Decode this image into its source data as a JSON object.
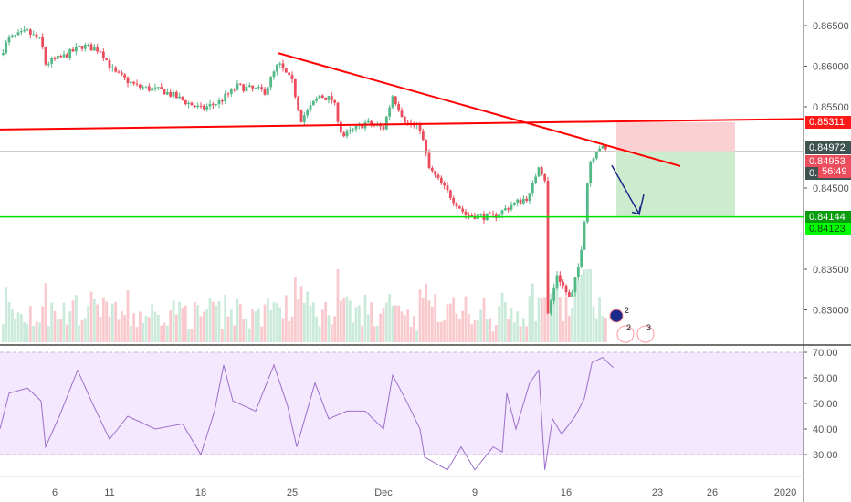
{
  "colors": {
    "up": "#53b987",
    "down": "#eb4d5c",
    "trend": "#ff0000",
    "support": "#00e000",
    "rsi": "#9c6fc9",
    "rsi_band": "#f3e8fd",
    "stop_zone": "#fbd0d3",
    "target_zone": "#cdeccd",
    "arrow": "#1a2a8a"
  },
  "chart_data": [
    {
      "type": "candlestick",
      "ylim": [
        0.8272,
        0.8685
      ],
      "y_ticks": [
        "0.86500",
        "0.86000",
        "0.85500",
        "0.84500",
        "0.83500",
        "0.83000"
      ],
      "y_tick_values": [
        0.865,
        0.86,
        0.855,
        0.845,
        0.835,
        0.83
      ],
      "x_ticks": [
        "6",
        "11",
        "18",
        "25",
        "Dec",
        "9",
        "16",
        "23",
        "26",
        "2020"
      ],
      "x_tick_dates": [
        "2019-11-06 00",
        "2019-11-11 00",
        "2019-11-18 00",
        "2019-11-25 00",
        "2019-12-02 00",
        "2019-12-09 00",
        "2019-12-16 00",
        "2019-12-23 00",
        "2019-12-26 00",
        "2020-01-01 00"
      ],
      "price_path": [
        [
          "2019-11-01 00",
          0.8614
        ],
        [
          "2019-11-01 12",
          0.8634
        ],
        [
          "2019-11-04 12",
          0.8642
        ],
        [
          "2019-11-05 06",
          0.8631
        ],
        [
          "2019-11-05 12",
          0.8603
        ],
        [
          "2019-11-06 12",
          0.8612
        ],
        [
          "2019-11-07 12",
          0.8625
        ],
        [
          "2019-11-08 12",
          0.862
        ],
        [
          "2019-11-11 06",
          0.8592
        ],
        [
          "2019-11-12 12",
          0.8575
        ],
        [
          "2019-11-14 00",
          0.8569
        ],
        [
          "2019-11-18 00",
          0.8547
        ],
        [
          "2019-11-19 00",
          0.8556
        ],
        [
          "2019-11-20 00",
          0.8575
        ],
        [
          "2019-11-21 12",
          0.8569
        ],
        [
          "2019-11-22 06",
          0.8603
        ],
        [
          "2019-11-25 00",
          0.858
        ],
        [
          "2019-11-25 12",
          0.8535
        ],
        [
          "2019-11-26 12",
          0.8564
        ],
        [
          "2019-11-27 06",
          0.8558
        ],
        [
          "2019-11-27 18",
          0.8513
        ],
        [
          "2019-11-29 00",
          0.853
        ],
        [
          "2019-12-02 00",
          0.8524
        ],
        [
          "2019-12-02 12",
          0.8564
        ],
        [
          "2019-12-03 06",
          0.853
        ],
        [
          "2019-12-04 00",
          0.8524
        ],
        [
          "2019-12-04 12",
          0.8474
        ],
        [
          "2019-12-05 12",
          0.8445
        ],
        [
          "2019-12-06 12",
          0.8417
        ],
        [
          "2019-12-10 00",
          0.8414
        ],
        [
          "2019-12-11 00",
          0.8429
        ],
        [
          "2019-12-12 00",
          0.844
        ],
        [
          "2019-12-12 12",
          0.8479
        ],
        [
          "2019-12-12 22",
          0.8457
        ],
        [
          "2019-12-13 00",
          0.8294
        ],
        [
          "2019-12-13 12",
          0.8344
        ],
        [
          "2019-12-16 06",
          0.8311
        ],
        [
          "2019-12-16 18",
          0.8361
        ],
        [
          "2019-12-17 00",
          0.8412
        ],
        [
          "2019-12-17 06",
          0.8479
        ],
        [
          "2019-12-17 18",
          0.8502
        ],
        [
          "2019-12-18 06",
          0.8495
        ]
      ],
      "drawings": {
        "trendline": [
          [
            "2019-11-22 06",
            0.8616
          ],
          [
            "2019-12-24 06",
            0.8477
          ]
        ],
        "resistance_line": [
          [
            "2019-11-01 00",
            0.8522
          ],
          [
            "2020-01-02 00",
            0.8535
          ]
        ],
        "support_level": 0.84144,
        "current_price": 0.84953,
        "position": {
          "type": "short",
          "start": "2019-12-18 18",
          "end": "2019-12-27 06",
          "entry": 0.84953,
          "stop": 0.85311,
          "target": 0.84144
        },
        "arrow": [
          [
            "2019-12-18 12",
            0.8478
          ],
          [
            "2019-12-20 00",
            0.8418
          ],
          [
            "2019-12-20 06",
            0.8442
          ]
        ]
      },
      "price_labels": [
        {
          "text": "0.85311",
          "price": 0.85311,
          "bg": "#ff1a1a",
          "fg": "#ffffff"
        },
        {
          "text": "0.84972",
          "price": 0.8499,
          "bg": "#3f5450",
          "fg": "#ffffff"
        },
        {
          "text": "0.84953",
          "price": 0.8483,
          "bg": "#eb4d5c",
          "fg": "#ffffff"
        },
        {
          "text": "0.",
          "price": 0.8468,
          "bg": "#3f5450",
          "fg": "#ffffff",
          "countdown": "56:49"
        },
        {
          "text": "0.84144",
          "price": 0.84144,
          "bg": "#089b0b",
          "fg": "#ffffff"
        },
        {
          "text": "0.84123",
          "price": 0.8399,
          "bg": "#00ff00",
          "fg": "#0a4a0a"
        }
      ],
      "events": {
        "badge_top": "2",
        "badge_left": "2",
        "badge_right": "3"
      }
    },
    {
      "type": "line",
      "indicator": "RSI",
      "ylim": [
        26,
        72
      ],
      "y_ticks": [
        "70.00",
        "60.00",
        "50.00",
        "40.00",
        "30.00"
      ],
      "y_tick_values": [
        70,
        60,
        50,
        40,
        30
      ],
      "band": [
        30,
        70
      ],
      "values": [
        [
          "2019-11-01 00",
          40
        ],
        [
          "2019-11-01 12",
          54
        ],
        [
          "2019-11-04 12",
          56
        ],
        [
          "2019-11-05 06",
          51
        ],
        [
          "2019-11-05 12",
          33
        ],
        [
          "2019-11-06 06",
          45
        ],
        [
          "2019-11-07 06",
          63
        ],
        [
          "2019-11-08 00",
          51
        ],
        [
          "2019-11-11 00",
          36
        ],
        [
          "2019-11-12 00",
          45
        ],
        [
          "2019-11-13 12",
          40
        ],
        [
          "2019-11-15 00",
          42
        ],
        [
          "2019-11-18 00",
          30
        ],
        [
          "2019-11-18 18",
          47
        ],
        [
          "2019-11-19 06",
          65
        ],
        [
          "2019-11-19 18",
          51
        ],
        [
          "2019-11-21 00",
          47
        ],
        [
          "2019-11-22 00",
          65
        ],
        [
          "2019-11-22 18",
          49
        ],
        [
          "2019-11-25 06",
          33
        ],
        [
          "2019-11-26 06",
          58
        ],
        [
          "2019-11-27 00",
          44
        ],
        [
          "2019-11-28 00",
          47
        ],
        [
          "2019-11-29 00",
          47
        ],
        [
          "2019-12-02 00",
          40
        ],
        [
          "2019-12-02 12",
          61
        ],
        [
          "2019-12-03 06",
          51
        ],
        [
          "2019-12-04 00",
          40
        ],
        [
          "2019-12-04 06",
          29
        ],
        [
          "2019-12-05 12",
          24
        ],
        [
          "2019-12-06 06",
          33
        ],
        [
          "2019-12-09 00",
          24
        ],
        [
          "2019-12-10 00",
          33
        ],
        [
          "2019-12-10 12",
          31
        ],
        [
          "2019-12-10 18",
          54
        ],
        [
          "2019-12-11 06",
          40
        ],
        [
          "2019-12-12 00",
          58
        ],
        [
          "2019-12-12 12",
          63
        ],
        [
          "2019-12-12 20",
          24
        ],
        [
          "2019-12-13 06",
          44
        ],
        [
          "2019-12-13 18",
          38
        ],
        [
          "2019-12-16 12",
          45
        ],
        [
          "2019-12-17 00",
          52
        ],
        [
          "2019-12-17 10",
          66
        ],
        [
          "2019-12-18 00",
          68
        ],
        [
          "2019-12-18 14",
          64
        ]
      ]
    }
  ]
}
